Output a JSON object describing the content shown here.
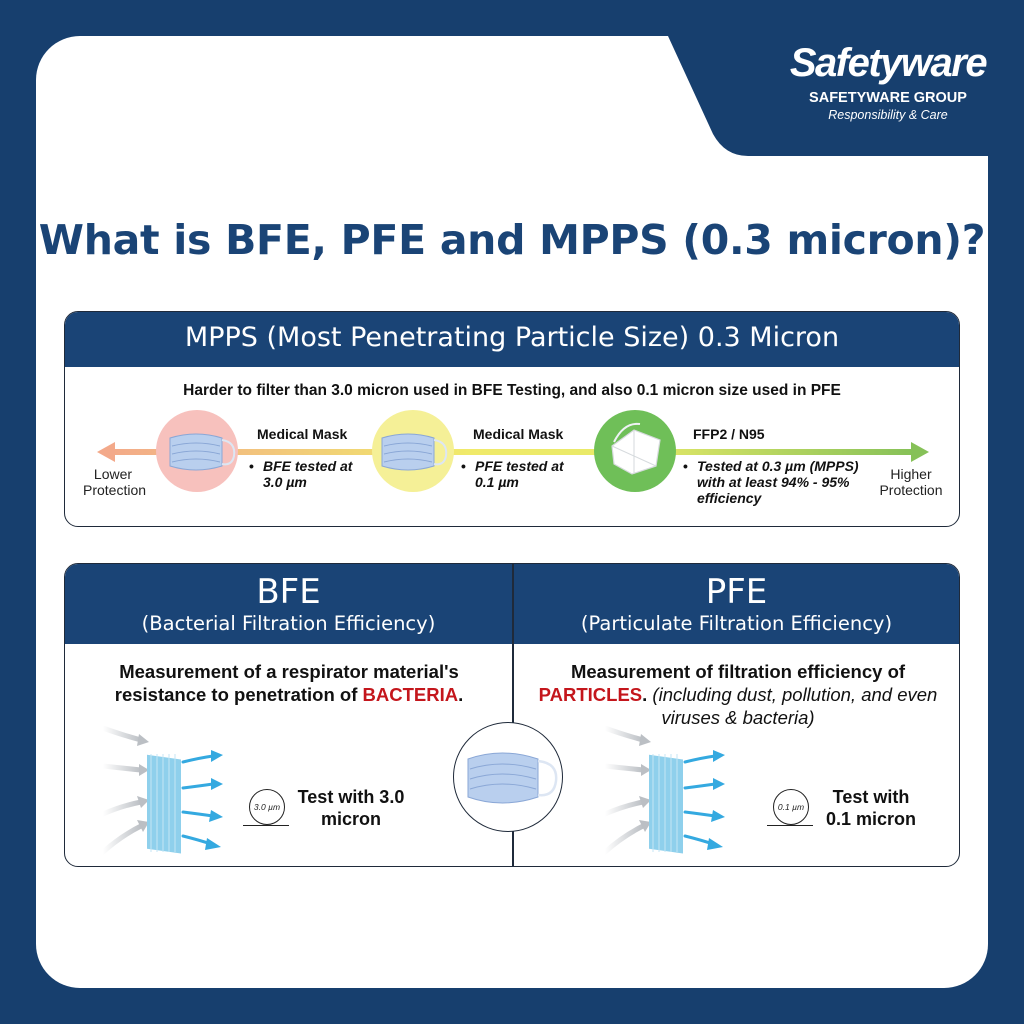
{
  "brand": {
    "logo_text": "Safetyware",
    "group": "SAFETYWARE GROUP",
    "tagline": "Responsibility & Care"
  },
  "title": "What is BFE, PFE and MPPS (0.3 micron)?",
  "mpps": {
    "heading": "MPPS (Most Penetrating Particle Size) 0.3 Micron",
    "subtitle": "Harder to filter than 3.0 micron used in BFE Testing, and also 0.1 micron size used in PFE",
    "scale_low": "Lower Protection",
    "scale_high": "Higher Protection",
    "items": [
      {
        "title": "Medical Mask",
        "detail": "BFE tested at 3.0 µm",
        "circle_color": "#f7c1bd"
      },
      {
        "title": "Medical Mask",
        "detail": "PFE tested at 0.1 µm",
        "circle_color": "#f5f097"
      },
      {
        "title": "FFP2 / N95",
        "detail": "Tested at 0.3 µm (MPPS) with at least 94% - 95% efficiency",
        "circle_color": "#6fbf58"
      }
    ]
  },
  "bfe": {
    "title": "BFE",
    "subtitle": "(Bacterial Filtration Efficiency)",
    "desc_pre": "Measurement of a respirator material's resistance to penetration of",
    "desc_highlight": "BACTERIA",
    "desc_post": ".",
    "micron_label": "3.0 µm",
    "test": "Test with 3.0 micron"
  },
  "pfe": {
    "title": "PFE",
    "subtitle": "(Particulate Filtration Efficiency)",
    "desc_pre": "Measurement of filtration efficiency of",
    "desc_highlight": "PARTICLES",
    "desc_post": ".",
    "desc_note": "(including dust, pollution, and even viruses & bacteria)",
    "micron_label": "0.1 µm",
    "test": "Test with 0.1 micron"
  },
  "colors": {
    "navy": "#1a4476",
    "accent_red": "#c4161c",
    "scale_low": "#f3a98a",
    "scale_mid": "#f0ea6a",
    "scale_high": "#86c158"
  }
}
